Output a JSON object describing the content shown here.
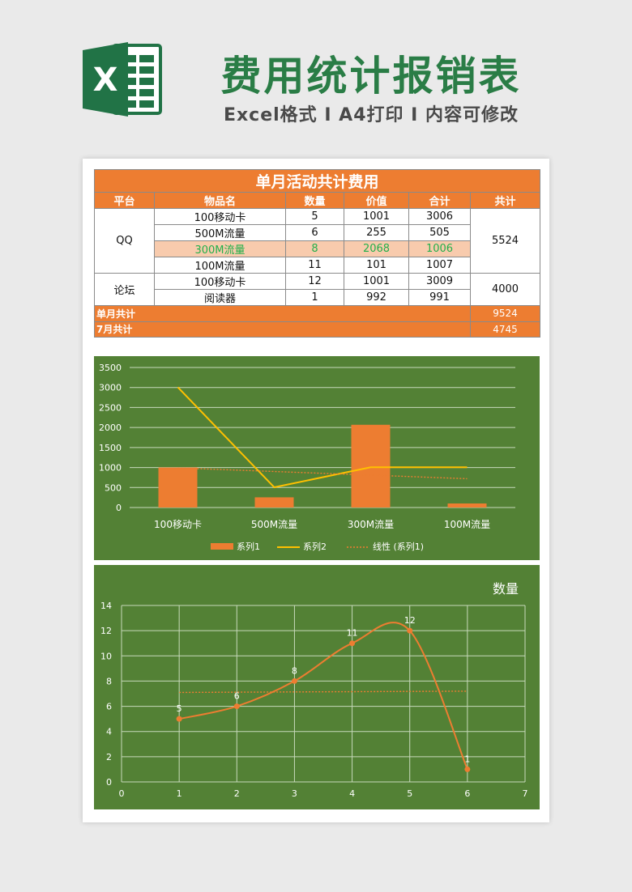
{
  "header": {
    "title": "费用统计报销表",
    "subtitle": "Excel格式 I A4打印 I 内容可修改",
    "logo_letter": "X",
    "logo_icon": "excel-logo-icon",
    "brand_color": "#217346",
    "title_color": "#2a7d46"
  },
  "table": {
    "caption": "单月活动共计费用",
    "columns": [
      "平台",
      "物品名",
      "数量",
      "价值",
      "合计",
      "共计"
    ],
    "groups": [
      {
        "platform": "QQ",
        "total": "5524",
        "rows": [
          {
            "item": "100移动卡",
            "qty": "5",
            "value": "1001",
            "sum": "3006",
            "highlight": false
          },
          {
            "item": "500M流量",
            "qty": "6",
            "value": "255",
            "sum": "505",
            "highlight": false
          },
          {
            "item": "300M流量",
            "qty": "8",
            "value": "2068",
            "sum": "1006",
            "highlight": true
          },
          {
            "item": "100M流量",
            "qty": "11",
            "value": "101",
            "sum": "1007",
            "highlight": false
          }
        ]
      },
      {
        "platform": "论坛",
        "total": "4000",
        "rows": [
          {
            "item": "100移动卡",
            "qty": "12",
            "value": "1001",
            "sum": "3009",
            "highlight": false
          },
          {
            "item": "阅读器",
            "qty": "1",
            "value": "992",
            "sum": "991",
            "highlight": false
          }
        ]
      }
    ],
    "summary": [
      {
        "label": "单月共计",
        "value": "9524"
      },
      {
        "label": "7月共计",
        "value": "4745"
      }
    ],
    "accent_color": "#ed7d31",
    "highlight_bg": "#f8cbad",
    "highlight_text": "#22b04b"
  },
  "chart_data": [
    {
      "type": "bar",
      "categories": [
        "100移动卡",
        "500M流量",
        "300M流量",
        "100M流量"
      ],
      "series": [
        {
          "name": "系列1",
          "type": "bar",
          "values": [
            1001,
            255,
            2068,
            101
          ],
          "color": "#ed7d31"
        },
        {
          "name": "系列2",
          "type": "line",
          "values": [
            3006,
            505,
            1006,
            1007
          ],
          "color": "#ffc000"
        },
        {
          "name": "线性 (系列1)",
          "type": "trendline",
          "values": [
            990,
            900,
            810,
            720
          ],
          "color": "#ed7d31"
        }
      ],
      "title": "",
      "ylim": [
        0,
        3500
      ],
      "yticks": [
        0,
        500,
        1000,
        1500,
        2000,
        2500,
        3000,
        3500
      ],
      "grid": true,
      "legend": "bottom",
      "background": "#538135"
    },
    {
      "type": "scatter",
      "title": "数量",
      "series": [
        {
          "name": "数量",
          "x": [
            1,
            2,
            3,
            4,
            5,
            6
          ],
          "y": [
            5,
            6,
            8,
            11,
            12,
            1
          ],
          "color": "#ed7d31",
          "smooth": true,
          "data_labels": true
        }
      ],
      "trendline": {
        "x": [
          1,
          6
        ],
        "y": [
          7.1,
          7.2
        ]
      },
      "xlim": [
        0,
        7
      ],
      "ylim": [
        0,
        14
      ],
      "xticks": [
        0,
        1,
        2,
        3,
        4,
        5,
        6,
        7
      ],
      "yticks": [
        0,
        2,
        4,
        6,
        8,
        10,
        12,
        14
      ],
      "grid": true,
      "background": "#538135"
    }
  ]
}
